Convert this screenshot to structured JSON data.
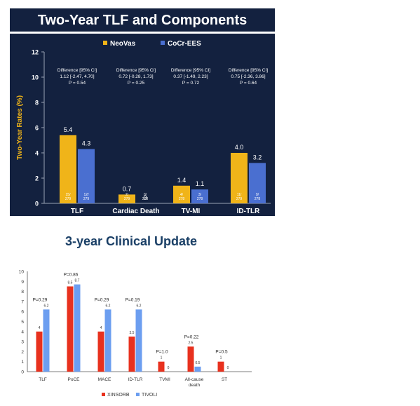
{
  "chart_data": [
    {
      "type": "bar",
      "title": "Two-Year TLF and Components",
      "ylabel": "Two-Year Rates (%)",
      "ylim": [
        0,
        12
      ],
      "yticks": [
        0,
        2,
        4,
        6,
        8,
        10,
        12
      ],
      "legend_placement": "top-left",
      "grid": false,
      "categories": [
        "TLF",
        "Cardiac Death",
        "TV-MI",
        "ID-TLR"
      ],
      "series": [
        {
          "name": "NeoVas",
          "color": "#f0b419",
          "values": [
            5.4,
            0.7,
            1.4,
            4.0
          ],
          "value_labels": [
            "5.4",
            "0.7",
            "1.4",
            "4.0"
          ],
          "counts": [
            "15/\n279",
            "2/\n279",
            "4/\n278",
            "11/\n279"
          ]
        },
        {
          "name": "CoCr-EES",
          "color": "#4a6fd0",
          "values": [
            4.3,
            0,
            1.1,
            3.2
          ],
          "value_labels": [
            "4.3",
            "0",
            "1.1",
            "3.2"
          ],
          "counts": [
            "12/\n279",
            "0/\n278",
            "3/\n278",
            "9/\n278"
          ]
        }
      ],
      "annotations": [
        {
          "l1": "Difference [95% CI]",
          "l2": "1.12 [-2.47, 4.70]",
          "l3": "P = 0.54"
        },
        {
          "l1": "Difference [95% CI]",
          "l2": "0.72 [-0.28, 1.73]",
          "l3": "P = 0.25"
        },
        {
          "l1": "Difference [95% CI]",
          "l2": "0.37 [-1.49, 2.23]",
          "l3": "P = 0.72"
        },
        {
          "l1": "Difference [95% CI]",
          "l2": "0.75 [-2.36, 3.86]",
          "l3": "P = 0.64"
        }
      ]
    },
    {
      "type": "bar",
      "title": "3-year Clinical Update",
      "ylim": [
        0,
        10
      ],
      "yticks": [
        0,
        1,
        2,
        3,
        4,
        5,
        6,
        7,
        8,
        9,
        10
      ],
      "legend_placement": "bottom",
      "grid": false,
      "categories": [
        "TLF",
        "PoCE",
        "MACE",
        "ID-TLR",
        "TVMI",
        "All-cause\ndeath",
        "ST"
      ],
      "series": [
        {
          "name": "XINSORB",
          "color": "#e8311e",
          "values": [
            4,
            8.5,
            4,
            3.5,
            1,
            2.5,
            1
          ],
          "value_labels": [
            "4",
            "8.5",
            "4",
            "3.5",
            "1",
            "2.5",
            "1"
          ]
        },
        {
          "name": "TIVOLI",
          "color": "#6c9ef0",
          "values": [
            6.2,
            8.7,
            6.2,
            6.2,
            0,
            0.5,
            0
          ],
          "value_labels": [
            "6.2",
            "8.7",
            "6.2",
            "6.2",
            "0",
            "0.5",
            "0"
          ]
        }
      ],
      "p_values": [
        "P=0.29",
        "P=0.86",
        "P=0.29",
        "P=0.19",
        "P=1.0",
        "P=0.22",
        "P=0.5"
      ]
    }
  ]
}
